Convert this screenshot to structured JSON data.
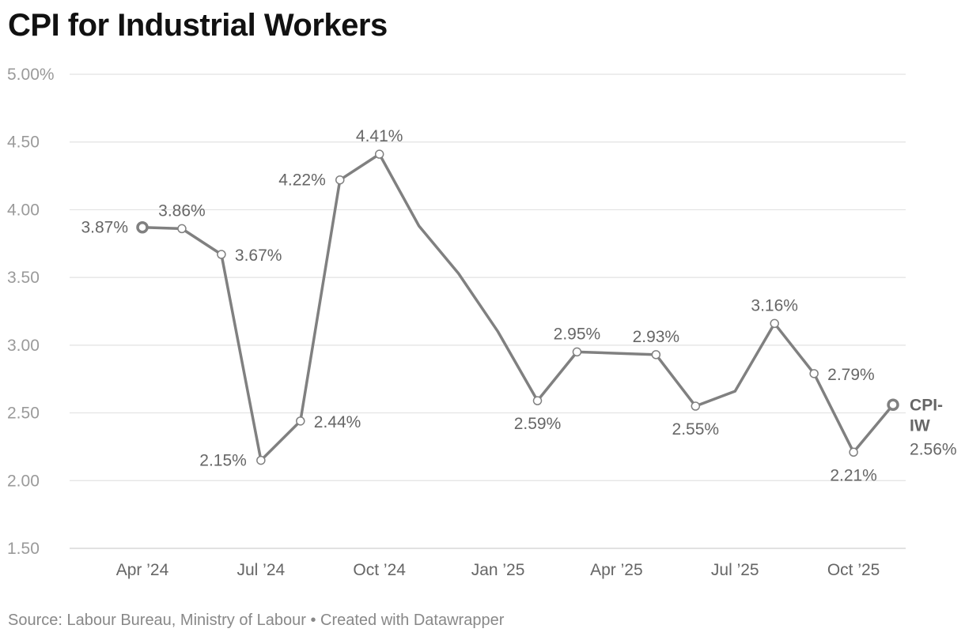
{
  "title": "CPI for Industrial Workers",
  "footer": {
    "source": "Source: Labour Bureau, Ministry of Labour",
    "separator": "•",
    "credit": "Created with Datawrapper"
  },
  "colors": {
    "line": "#808080",
    "grid": "#e2e2e2",
    "axis": "#9a9a9a",
    "label": "#666666"
  },
  "chart_data": {
    "type": "line",
    "title": "CPI for Industrial Workers",
    "xlabel": "",
    "ylabel": "",
    "ylim": [
      1.5,
      5.0
    ],
    "y_ticks": [
      "5.00%",
      "4.50",
      "4.00",
      "3.50",
      "3.00",
      "2.50",
      "2.00",
      "1.50"
    ],
    "y_tick_values": [
      5.0,
      4.5,
      4.0,
      3.5,
      3.0,
      2.5,
      2.0,
      1.5
    ],
    "x_tick_labels": [
      {
        "label": "Apr ’24",
        "index": 0
      },
      {
        "label": "Jul ’24",
        "index": 3
      },
      {
        "label": "Oct ’24",
        "index": 6
      },
      {
        "label": "Jan ’25",
        "index": 9
      },
      {
        "label": "Apr ’25",
        "index": 12
      },
      {
        "label": "Jul ’25",
        "index": 15
      },
      {
        "label": "Oct ’25",
        "index": 18
      }
    ],
    "series": [
      {
        "name": "CPI-IW",
        "name_lines": [
          "CPI-",
          "IW"
        ],
        "end_label": "2.56%",
        "x": [
          "Apr 2024",
          "May 2024",
          "Jun 2024",
          "Jul 2024",
          "Aug 2024",
          "Sep 2024",
          "Oct 2024",
          "Nov 2024",
          "Dec 2024",
          "Jan 2025",
          "Feb 2025",
          "Mar 2025",
          "Apr 2025",
          "May 2025",
          "Jun 2025",
          "Jul 2025",
          "Aug 2025",
          "Sep 2025",
          "Oct 2025",
          "Nov 2025"
        ],
        "values": [
          3.87,
          3.86,
          3.67,
          2.15,
          2.44,
          4.22,
          4.41,
          3.88,
          3.53,
          3.1,
          2.59,
          2.95,
          2.94,
          2.93,
          2.55,
          2.66,
          3.16,
          2.79,
          2.21,
          2.56
        ]
      }
    ],
    "data_labels": [
      {
        "index": 0,
        "text": "3.87%",
        "pos": "left"
      },
      {
        "index": 1,
        "text": "3.86%",
        "pos": "above"
      },
      {
        "index": 2,
        "text": "3.67%",
        "pos": "right"
      },
      {
        "index": 3,
        "text": "2.15%",
        "pos": "left"
      },
      {
        "index": 4,
        "text": "2.44%",
        "pos": "right"
      },
      {
        "index": 5,
        "text": "4.22%",
        "pos": "left"
      },
      {
        "index": 6,
        "text": "4.41%",
        "pos": "above"
      },
      {
        "index": 10,
        "text": "2.59%",
        "pos": "below"
      },
      {
        "index": 11,
        "text": "2.95%",
        "pos": "above"
      },
      {
        "index": 13,
        "text": "2.93%",
        "pos": "above"
      },
      {
        "index": 14,
        "text": "2.55%",
        "pos": "below"
      },
      {
        "index": 16,
        "text": "3.16%",
        "pos": "above"
      },
      {
        "index": 17,
        "text": "2.79%",
        "pos": "right"
      },
      {
        "index": 18,
        "text": "2.21%",
        "pos": "below"
      }
    ]
  }
}
